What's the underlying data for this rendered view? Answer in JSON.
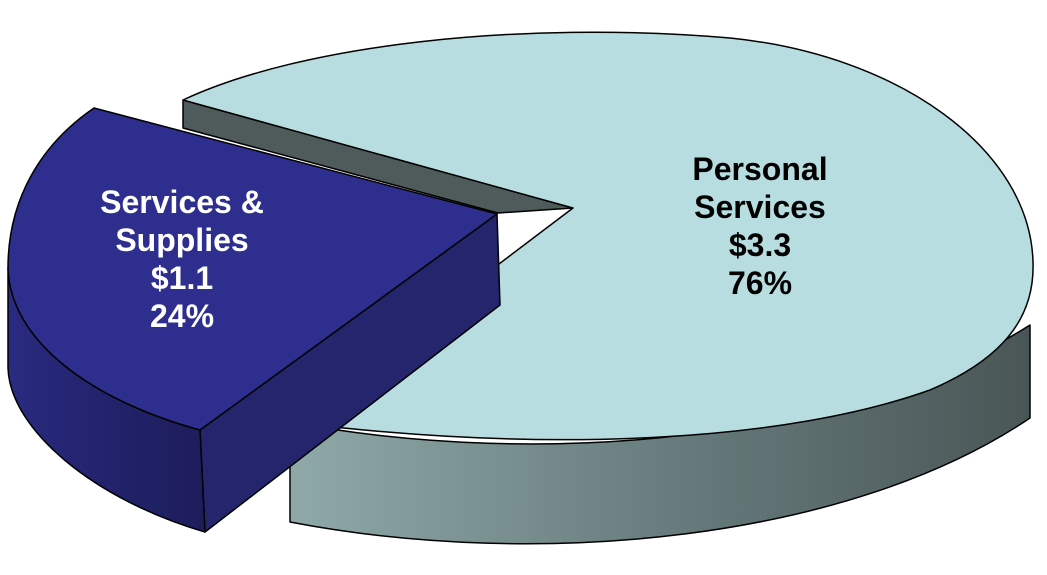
{
  "chart_data": {
    "type": "pie",
    "style": "3d-exploded",
    "title": "",
    "slices": [
      {
        "key": "personal",
        "label_lines": [
          "Personal",
          "Services"
        ],
        "value_label": "$3.3",
        "percent_label": "76%",
        "value": 3.3,
        "percent": 76,
        "color": "#b8dde0",
        "side_color": "#5b6a6a"
      },
      {
        "key": "services",
        "label_lines": [
          "Services &",
          "Supplies"
        ],
        "value_label": "$1.1",
        "percent_label": "24%",
        "value": 1.1,
        "percent": 24,
        "color": "#2e2e8e",
        "side_color": "#23236e",
        "exploded": true
      }
    ]
  }
}
